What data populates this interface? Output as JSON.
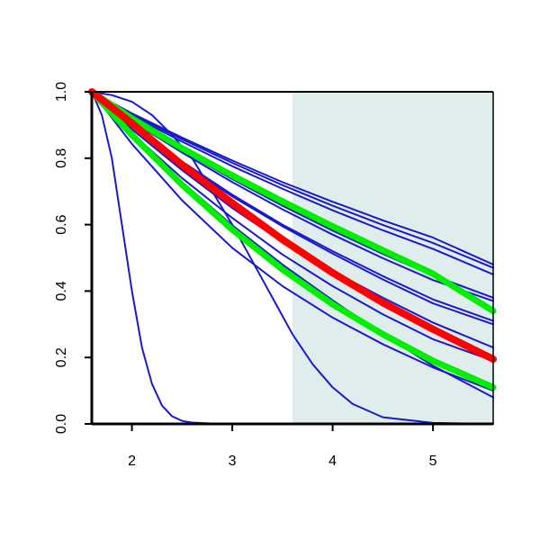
{
  "chart_data": {
    "type": "line",
    "title": "",
    "xlabel": "",
    "ylabel": "",
    "xlim": [
      1.6,
      5.6
    ],
    "ylim": [
      0.0,
      1.0
    ],
    "x_ticks": [
      "2",
      "3",
      "4",
      "5"
    ],
    "y_ticks": [
      "0.0",
      "0.2",
      "0.4",
      "0.6",
      "0.8",
      "1.0"
    ],
    "grid": false,
    "legend": "none",
    "shaded_region": {
      "x_start": 3.6,
      "x_end": 5.6,
      "color": "#e0eded"
    },
    "colors": {
      "blue": "#1a1acc",
      "red": "#ff0000",
      "green": "#00ee00"
    },
    "series": [
      {
        "color": "blue",
        "x": [
          1.6,
          2.0,
          2.5,
          3.0,
          3.5,
          4.0,
          4.5,
          5.0,
          5.6
        ],
        "y": [
          1.0,
          0.935,
          0.862,
          0.793,
          0.728,
          0.669,
          0.613,
          0.561,
          0.48
        ]
      },
      {
        "color": "blue",
        "x": [
          1.6,
          2.0,
          2.5,
          3.0,
          3.5,
          4.0,
          4.5,
          5.0,
          5.6
        ],
        "y": [
          1.0,
          0.932,
          0.857,
          0.786,
          0.719,
          0.657,
          0.599,
          0.545,
          0.47
        ]
      },
      {
        "color": "blue",
        "x": [
          1.6,
          2.0,
          2.5,
          3.0,
          3.5,
          4.0,
          4.5,
          5.0,
          5.6
        ],
        "y": [
          1.0,
          0.928,
          0.85,
          0.776,
          0.708,
          0.643,
          0.583,
          0.527,
          0.45
        ]
      },
      {
        "color": "blue",
        "x": [
          1.6,
          2.0,
          2.5,
          3.0,
          3.5,
          4.0,
          4.5,
          5.0,
          5.6
        ],
        "y": [
          1.0,
          0.915,
          0.823,
          0.737,
          0.657,
          0.582,
          0.512,
          0.447,
          0.38
        ]
      },
      {
        "color": "blue",
        "x": [
          1.6,
          2.0,
          2.5,
          3.0,
          3.5,
          4.0,
          4.5,
          5.0,
          5.6
        ],
        "y": [
          1.0,
          0.912,
          0.817,
          0.728,
          0.646,
          0.57,
          0.499,
          0.433,
          0.37
        ]
      },
      {
        "color": "blue",
        "x": [
          1.6,
          2.0,
          2.5,
          3.0,
          3.5,
          4.0,
          4.5,
          5.0,
          5.6
        ],
        "y": [
          1.0,
          0.9,
          0.79,
          0.69,
          0.6,
          0.52,
          0.445,
          0.375,
          0.31
        ]
      },
      {
        "color": "blue",
        "x": [
          1.6,
          2.0,
          2.5,
          3.0,
          3.5,
          4.0,
          4.5,
          5.0,
          5.6
        ],
        "y": [
          1.0,
          0.895,
          0.785,
          0.685,
          0.595,
          0.513,
          0.435,
          0.363,
          0.3
        ]
      },
      {
        "color": "blue",
        "x": [
          1.6,
          2.0,
          2.5,
          3.0,
          3.5,
          4.0,
          4.5,
          5.0,
          5.6
        ],
        "y": [
          1.0,
          0.887,
          0.764,
          0.65,
          0.548,
          0.46,
          0.38,
          0.305,
          0.23
        ]
      },
      {
        "color": "blue",
        "x": [
          1.6,
          2.0,
          2.5,
          3.0,
          3.5,
          4.0,
          4.5,
          5.0,
          5.6
        ],
        "y": [
          1.0,
          0.875,
          0.74,
          0.62,
          0.51,
          0.415,
          0.33,
          0.255,
          0.19
        ]
      },
      {
        "color": "blue",
        "x": [
          1.6,
          2.0,
          2.5,
          3.0,
          3.5,
          4.0,
          4.5,
          5.0,
          5.6
        ],
        "y": [
          1.0,
          0.87,
          0.728,
          0.598,
          0.48,
          0.372,
          0.27,
          0.175,
          0.08
        ]
      },
      {
        "color": "blue",
        "x": [
          1.6,
          2.0,
          2.5,
          3.0,
          3.5,
          4.0,
          4.5,
          5.0,
          5.6
        ],
        "y": [
          1.0,
          0.843,
          0.673,
          0.53,
          0.415,
          0.32,
          0.24,
          0.17,
          0.1
        ]
      },
      {
        "color": "blue",
        "x": [
          1.6,
          1.8,
          2.0,
          2.2,
          2.4,
          2.6,
          2.8,
          3.0,
          3.2,
          3.4,
          3.6,
          3.8,
          4.0,
          4.2,
          4.5,
          5.0,
          5.6
        ],
        "y": [
          1.0,
          0.99,
          0.97,
          0.93,
          0.87,
          0.8,
          0.7,
          0.6,
          0.49,
          0.38,
          0.27,
          0.18,
          0.11,
          0.06,
          0.02,
          0.003,
          0.0
        ]
      },
      {
        "color": "blue",
        "x": [
          1.6,
          1.7,
          1.8,
          1.9,
          2.0,
          2.1,
          2.2,
          2.3,
          2.4,
          2.5,
          2.6,
          2.8,
          3.0,
          3.5,
          4.0,
          5.0,
          5.6
        ],
        "y": [
          1.0,
          0.93,
          0.8,
          0.6,
          0.4,
          0.23,
          0.12,
          0.055,
          0.023,
          0.009,
          0.004,
          0.001,
          0.0,
          0.0,
          0.0,
          0.0,
          0.0
        ]
      },
      {
        "color": "green",
        "width": 7,
        "x": [
          1.6,
          2.0,
          2.5,
          3.0,
          3.5,
          4.0,
          4.5,
          5.0,
          5.6
        ],
        "y": [
          1.0,
          0.92,
          0.83,
          0.748,
          0.67,
          0.595,
          0.523,
          0.452,
          0.34
        ]
      },
      {
        "color": "green",
        "width": 7,
        "x": [
          1.6,
          2.0,
          2.5,
          3.0,
          3.5,
          4.0,
          4.5,
          5.0,
          5.6
        ],
        "y": [
          1.0,
          0.87,
          0.72,
          0.585,
          0.465,
          0.36,
          0.27,
          0.19,
          0.11
        ]
      },
      {
        "color": "red",
        "width": 8,
        "x": [
          1.6,
          2.0,
          2.5,
          3.0,
          3.5,
          4.0,
          4.5,
          5.0,
          5.6
        ],
        "y": [
          1.0,
          0.905,
          0.78,
          0.665,
          0.555,
          0.455,
          0.365,
          0.285,
          0.195
        ]
      }
    ]
  }
}
